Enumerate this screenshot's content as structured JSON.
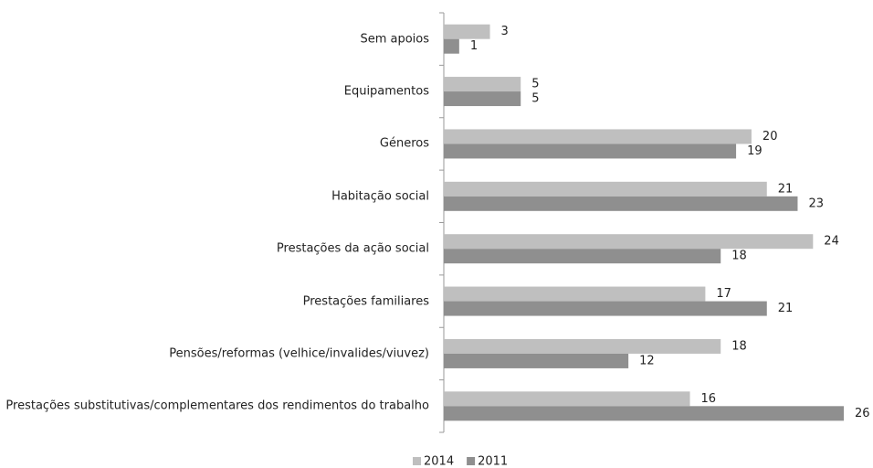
{
  "chart_data": {
    "type": "bar",
    "orientation": "horizontal",
    "categories": [
      "Sem apoios",
      "Equipamentos",
      "Géneros",
      "Habitação social",
      "Prestações da ação social",
      "Prestações familiares",
      "Pensões/reformas (velhice/invalides/viuvez)",
      "Prestações substitutivas/complementares dos rendimentos do trabalho"
    ],
    "series": [
      {
        "name": "2014",
        "color": "#bfbfbf",
        "values": [
          3,
          5,
          20,
          21,
          24,
          17,
          18,
          16
        ]
      },
      {
        "name": "2011",
        "color": "#8f8f8f",
        "values": [
          1,
          5,
          19,
          23,
          18,
          21,
          12,
          26
        ]
      }
    ],
    "legend": "bottom"
  }
}
